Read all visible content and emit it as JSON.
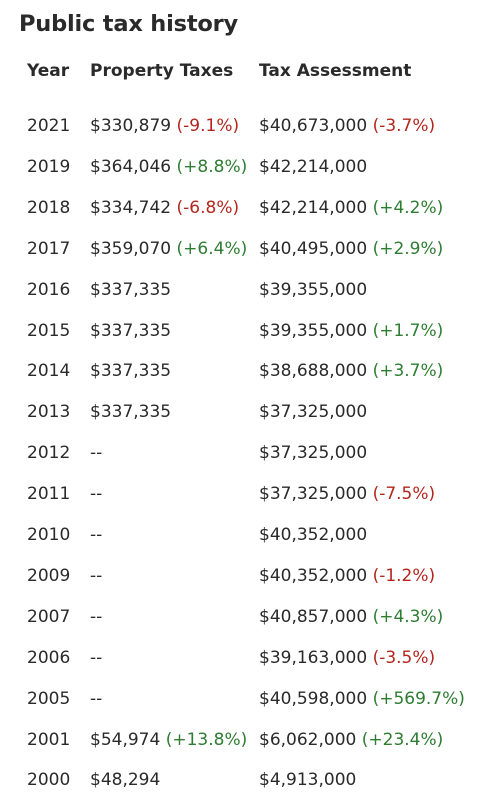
{
  "title": "Public tax history",
  "columns": {
    "year": "Year",
    "tax": "Property Taxes",
    "assessment": "Tax Assessment"
  },
  "colors": {
    "negative": "#b3261e",
    "positive": "#2e7d32"
  },
  "rows": [
    {
      "year": "2021",
      "tax": "$330,879",
      "tax_change": "(-9.1%)",
      "assessment": "$40,673,000",
      "assessment_change": "(-3.7%)"
    },
    {
      "year": "2019",
      "tax": "$364,046",
      "tax_change": "(+8.8%)",
      "assessment": "$42,214,000",
      "assessment_change": ""
    },
    {
      "year": "2018",
      "tax": "$334,742",
      "tax_change": "(-6.8%)",
      "assessment": "$42,214,000",
      "assessment_change": "(+4.2%)"
    },
    {
      "year": "2017",
      "tax": "$359,070",
      "tax_change": "(+6.4%)",
      "assessment": "$40,495,000",
      "assessment_change": "(+2.9%)"
    },
    {
      "year": "2016",
      "tax": "$337,335",
      "tax_change": "",
      "assessment": "$39,355,000",
      "assessment_change": ""
    },
    {
      "year": "2015",
      "tax": "$337,335",
      "tax_change": "",
      "assessment": "$39,355,000",
      "assessment_change": "(+1.7%)"
    },
    {
      "year": "2014",
      "tax": "$337,335",
      "tax_change": "",
      "assessment": "$38,688,000",
      "assessment_change": "(+3.7%)"
    },
    {
      "year": "2013",
      "tax": "$337,335",
      "tax_change": "",
      "assessment": "$37,325,000",
      "assessment_change": ""
    },
    {
      "year": "2012",
      "tax": "--",
      "tax_change": "",
      "assessment": "$37,325,000",
      "assessment_change": ""
    },
    {
      "year": "2011",
      "tax": "--",
      "tax_change": "",
      "assessment": "$37,325,000",
      "assessment_change": "(-7.5%)"
    },
    {
      "year": "2010",
      "tax": "--",
      "tax_change": "",
      "assessment": "$40,352,000",
      "assessment_change": ""
    },
    {
      "year": "2009",
      "tax": "--",
      "tax_change": "",
      "assessment": "$40,352,000",
      "assessment_change": "(-1.2%)"
    },
    {
      "year": "2007",
      "tax": "--",
      "tax_change": "",
      "assessment": "$40,857,000",
      "assessment_change": "(+4.3%)"
    },
    {
      "year": "2006",
      "tax": "--",
      "tax_change": "",
      "assessment": "$39,163,000",
      "assessment_change": "(-3.5%)"
    },
    {
      "year": "2005",
      "tax": "--",
      "tax_change": "",
      "assessment": "$40,598,000",
      "assessment_change": "(+569.7%)"
    },
    {
      "year": "2001",
      "tax": "$54,974",
      "tax_change": "(+13.8%)",
      "assessment": "$6,062,000",
      "assessment_change": "(+23.4%)"
    },
    {
      "year": "2000",
      "tax": "$48,294",
      "tax_change": "",
      "assessment": "$4,913,000",
      "assessment_change": ""
    }
  ]
}
